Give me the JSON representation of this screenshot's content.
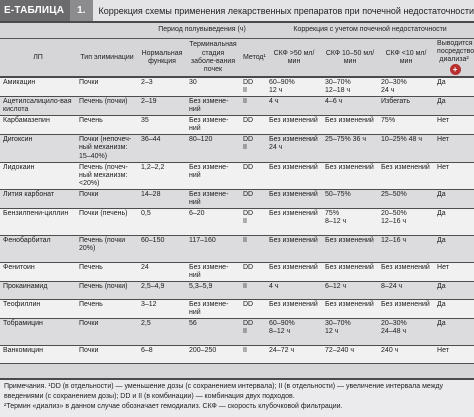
{
  "header": {
    "tag": "E-ТАБЛИЦА",
    "number": "1.",
    "title": "Коррекция схемы применения лекарственных препаратов при почечной недостаточности"
  },
  "table": {
    "group_halflife": "Период полувыведения (ч)",
    "group_correction": "Коррекция с учетом почечной недостаточности",
    "columns": {
      "drug": "ЛП",
      "elimination": "Тип элиминации",
      "normal": "Нормальная функция",
      "terminal": "Терминальная стадия заболе-вания почек",
      "method": "Метод¹",
      "gfr1": "СКФ >50 мл/мин",
      "gfr2": "СКФ 10–50 мл/мин",
      "gfr3": "СКФ <10 мл/мин",
      "dialysis": "Выводится посредством диализа²"
    },
    "rows": [
      {
        "drug": "Амикацин",
        "elim": "Почки",
        "normal": "2–3",
        "terminal": "30",
        "method": "DD\nII",
        "g1": "60–90%\n12 ч",
        "g2": "30–70%\n12–18 ч",
        "g3": "20–30%\n24 ч",
        "dial": "Да"
      },
      {
        "drug": "Ацетилсалицило-вая кислота",
        "elim": "Печень (почки)",
        "normal": "2–19",
        "terminal": "Без измене-ний",
        "method": "II",
        "g1": "4 ч",
        "g2": "4–6 ч",
        "g3": "Избегать",
        "dial": "Да"
      },
      {
        "drug": "Карбамазепин",
        "elim": "Печень",
        "normal": "35",
        "terminal": "Без измене-ний",
        "method": "DD",
        "g1": "Без изменений",
        "g2": "Без изменений",
        "g3": "75%",
        "dial": "Нет"
      },
      {
        "drug": "Дигоксин",
        "elim": "Почки (непочеч-ный механизм: 15–40%)",
        "normal": "36–44",
        "terminal": "80–120",
        "method": "DD\nII",
        "g1": "Без изменений\n24 ч",
        "g2": "25–75% 36 ч",
        "g3": "10–25% 48 ч",
        "dial": "Нет"
      },
      {
        "drug": "Лидокаин",
        "elim": "Печень (почеч-ный механизм: <20%)",
        "normal": "1,2–2,2",
        "terminal": "Без измене-ний",
        "method": "DD",
        "g1": "Без изменений",
        "g2": "Без изменений",
        "g3": "Без изменений",
        "dial": "Нет"
      },
      {
        "drug": "Лития карбонат",
        "elim": "Почки",
        "normal": "14–28",
        "terminal": "Без измене-ний",
        "method": "DD",
        "g1": "Без изменений",
        "g2": "50–75%",
        "g3": "25–50%",
        "dial": "Да"
      },
      {
        "drug": "Бензилпени-циллин",
        "elim": "Почки (печень)",
        "normal": "0,5",
        "terminal": "6–20",
        "method": "DD\nII",
        "g1": "Без изменений",
        "g2": "75%\n8–12 ч",
        "g3": "20–50%\n12–16 ч",
        "dial": "Да"
      },
      {
        "drug": "Фенобарбитал",
        "elim": "Печень (почки 20%)",
        "normal": "60–150",
        "terminal": "117–160",
        "method": "II",
        "g1": "Без изменений",
        "g2": "Без изменений",
        "g3": "12–16 ч",
        "dial": "Да"
      },
      {
        "drug": "Фенитоин",
        "elim": "Печень",
        "normal": "24",
        "terminal": "Без измене-ний",
        "method": "DD",
        "g1": "Без изменений",
        "g2": "Без изменений",
        "g3": "Без изменений",
        "dial": "Нет"
      },
      {
        "drug": "Прокаинамид",
        "elim": "Печень (почки)",
        "normal": "2,5–4,9",
        "terminal": "5,3–5,9",
        "method": "II",
        "g1": "4 ч",
        "g2": "6–12 ч",
        "g3": "8–24 ч",
        "dial": "Да"
      },
      {
        "drug": "Теофиллин",
        "elim": "Печень",
        "normal": "3–12",
        "terminal": "Без измене-ний",
        "method": "DD",
        "g1": "Без изменений",
        "g2": "Без изменений",
        "g3": "Без изменений",
        "dial": "Да"
      },
      {
        "drug": "Тобрамицин",
        "elim": "Почки",
        "normal": "2,5",
        "terminal": "56",
        "method": "DD\nII",
        "g1": "60–90%\n8–12 ч",
        "g2": "30–70%\n12 ч",
        "g3": "20–30%\n24–48 ч",
        "dial": "Да"
      },
      {
        "drug": "Ванкомицин",
        "elim": "Почки",
        "normal": "6–8",
        "terminal": "200–250",
        "method": "II",
        "g1": "24–72 ч",
        "g2": "72–240 ч",
        "g3": "240 ч",
        "dial": "Нет"
      }
    ]
  },
  "notes": {
    "line1": "Примечания. ¹DD (в отдельности) — уменьшение дозы (с сохранением интервала); II (в отдельности) — увеличение интервала между введениями (с сохранением дозы); DD и II (в комбинации) — комбинация двух подходов.",
    "line2": "²Термин «диализ» в данном случае обозначает гемодиализ. СКФ — скорость клубочковой фильтрации."
  }
}
